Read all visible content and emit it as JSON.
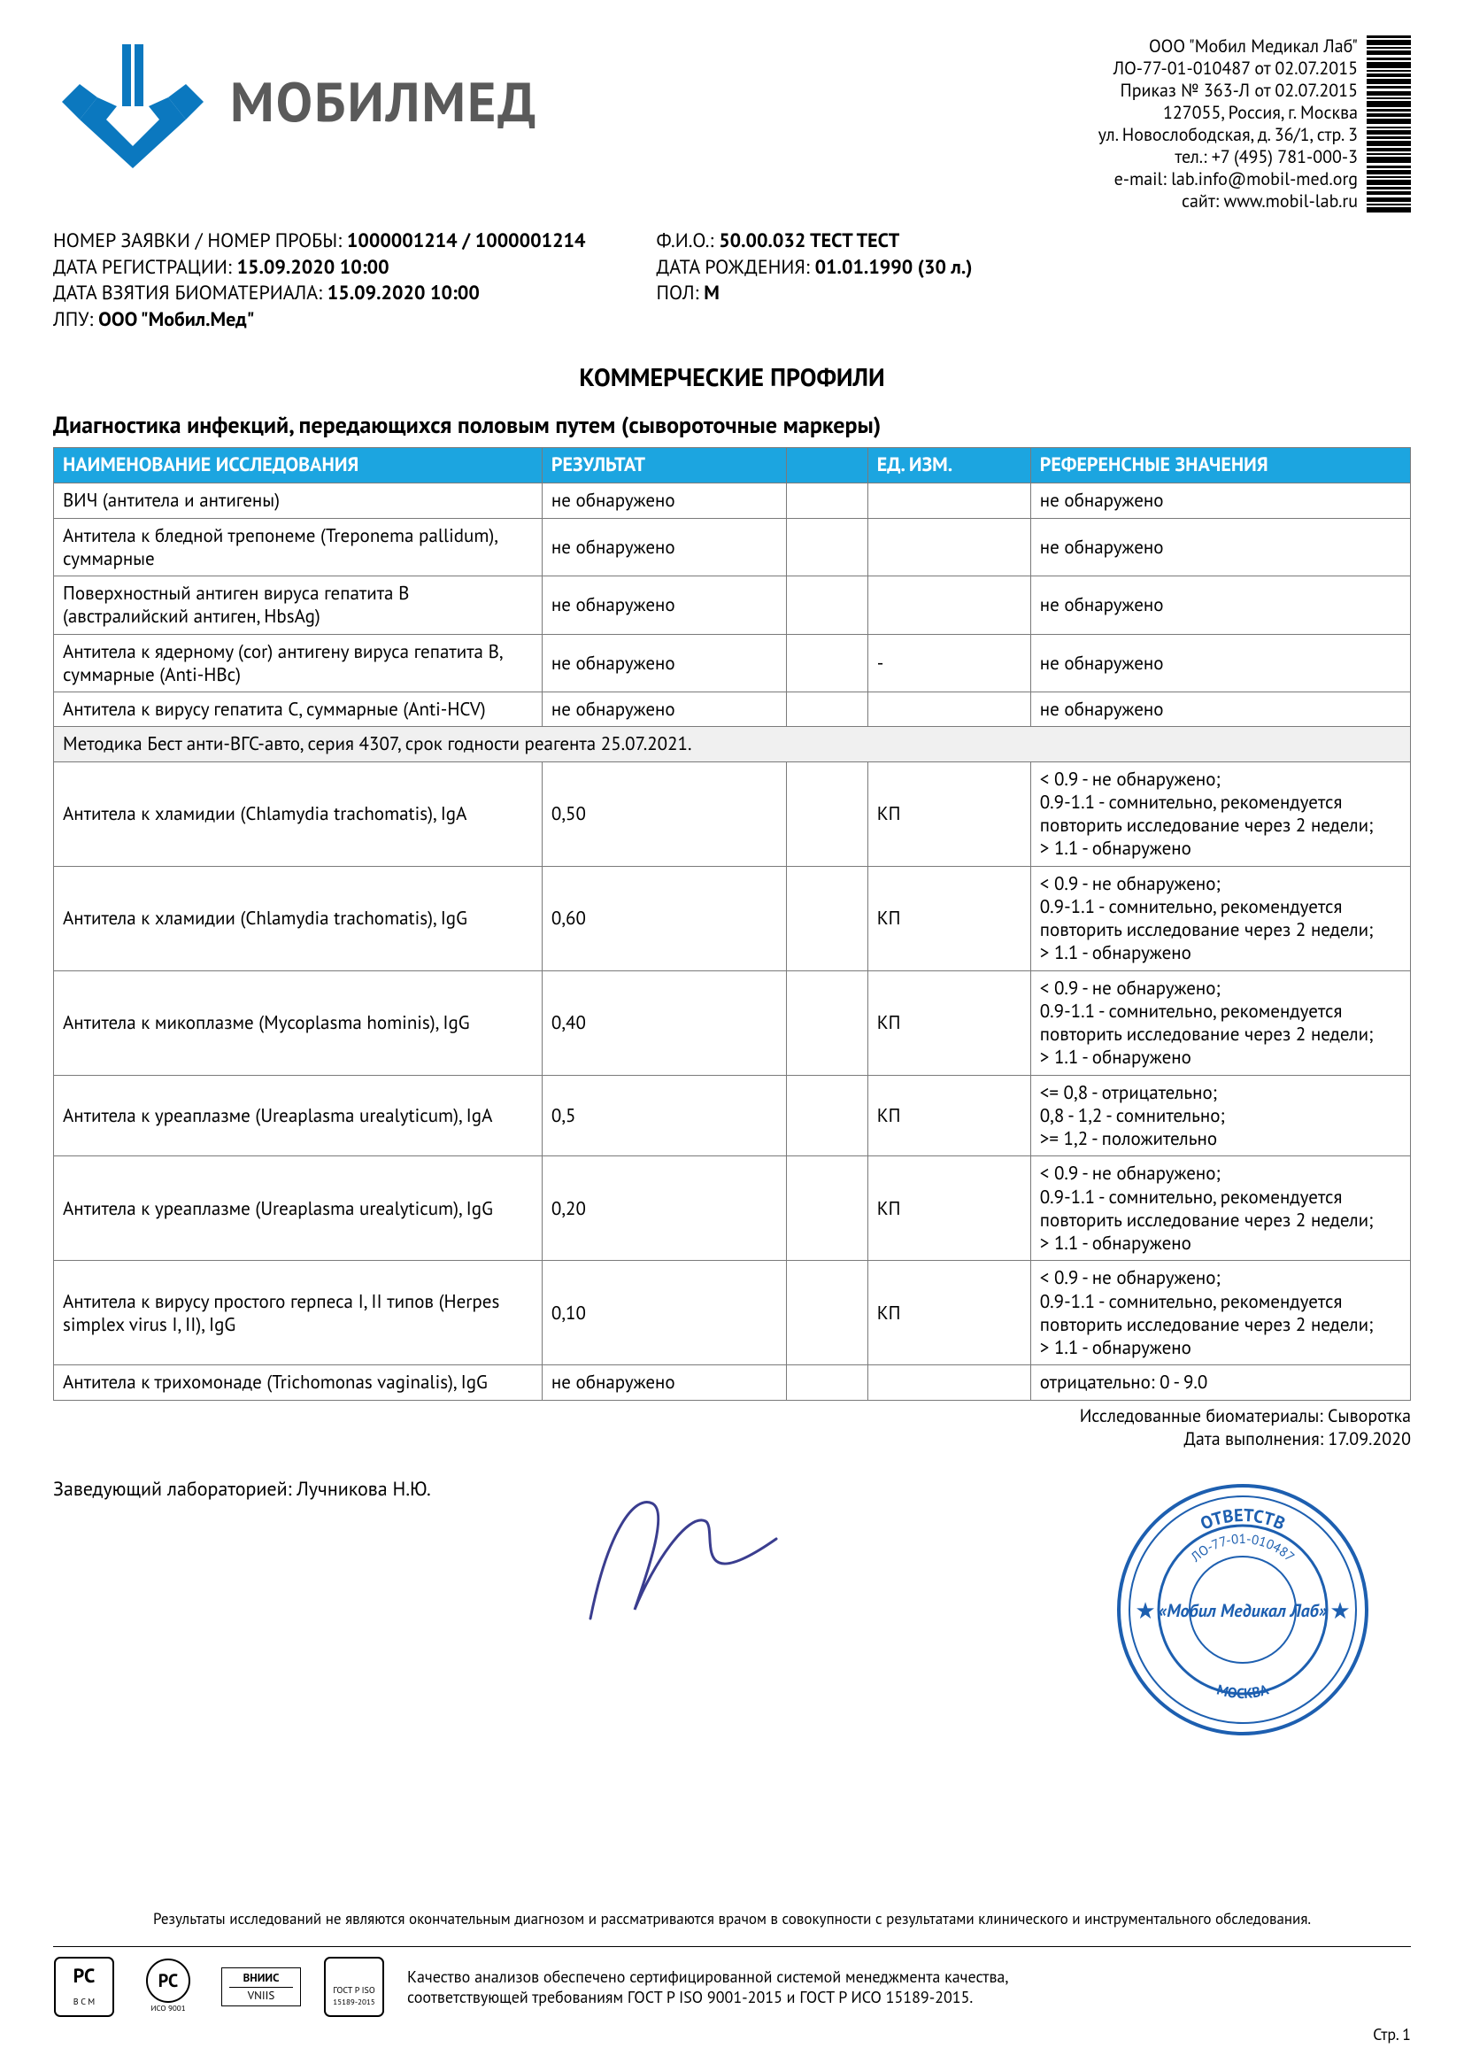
{
  "company": {
    "name": "ООО \"Мобил Медикал Лаб\"",
    "license": "ЛО-77-01-010487 от 02.07.2015",
    "order": "Приказ № 363-Л от 02.07.2015",
    "zip_city": "127055, Россия, г. Москва",
    "address": "ул. Новослободская, д. 36/1, стр. 3",
    "phone": "тел.: +7 (495) 781-000-3",
    "email": "e-mail: lab.info@mobil-med.org",
    "site": "сайт: www.mobil-lab.ru"
  },
  "logo_text": "МОБИЛМЕД",
  "meta_left": {
    "l1_label": "НОМЕР ЗАЯВКИ / НОМЕР ПРОБЫ: ",
    "l1_value": "1000001214 / 1000001214",
    "l2_label": "ДАТА РЕГИСТРАЦИИ: ",
    "l2_value": "15.09.2020 10:00",
    "l3_label": "ДАТА ВЗЯТИЯ БИОМАТЕРИАЛА: ",
    "l3_value": "15.09.2020 10:00",
    "l4_label": "ЛПУ: ",
    "l4_value": "ООО \"Мобил.Мед\""
  },
  "meta_right": {
    "l1_label": "Ф.И.О.: ",
    "l1_value": "50.00.032 ТЕСТ ТЕСТ",
    "l2_label": "ДАТА РОЖДЕНИЯ: ",
    "l2_value": "01.01.1990 (30 л.)",
    "l3_label": "ПОЛ: ",
    "l3_value": "М"
  },
  "section_title": "КОММЕРЧЕСКИЕ ПРОФИЛИ",
  "sub_title": "Диагностика инфекций, передающихся половым путем (сывороточные маркеры)",
  "columns": {
    "name": "НАИМЕНОВАНИЕ ИССЛЕДОВАНИЯ",
    "result": "РЕЗУЛЬТАТ",
    "flag": "",
    "unit": "ЕД. ИЗМ.",
    "ref": "РЕФЕРЕНСНЫЕ ЗНАЧЕНИЯ"
  },
  "rows": [
    {
      "name": "ВИЧ (антитела и антигены)",
      "result": "не обнаружено",
      "flag": "",
      "unit": "",
      "ref": "не обнаружено"
    },
    {
      "name": "Антитела к бледной трепонеме (Treponema pallidum), суммарные",
      "result": "не обнаружено",
      "flag": "",
      "unit": "",
      "ref": "не обнаружено"
    },
    {
      "name": "Поверхностный антиген вируса гепатита В (австралийский антиген, HbsAg)",
      "result": "не обнаружено",
      "flag": "",
      "unit": "",
      "ref": "не обнаружено"
    },
    {
      "name": "Антитела к ядерному (cor) антигену вируса гепатита В, суммарные (Anti-HBc)",
      "result": "не обнаружено",
      "flag": "",
      "unit": "-",
      "ref": "не обнаружено"
    },
    {
      "name": "Антитела к вирусу гепатита C, суммарные (Anti-HCV)",
      "result": "не обнаружено",
      "flag": "",
      "unit": "",
      "ref": "не обнаружено"
    },
    {
      "note": "Методика Бест анти-ВГС-авто, серия 4307, срок годности реагента 25.07.2021."
    },
    {
      "name": "Антитела к хламидии (Chlamydia trachomatis), IgA",
      "result": "0,50",
      "flag": "",
      "unit": "КП",
      "ref": "< 0.9 - не обнаружено;\n0.9-1.1 - сомнительно, рекомендуется повторить исследование через 2 недели;\n> 1.1 - обнаружено"
    },
    {
      "name": "Антитела к хламидии (Chlamydia trachomatis), IgG",
      "result": "0,60",
      "flag": "",
      "unit": "КП",
      "ref": "< 0.9 - не обнаружено;\n0.9-1.1 - сомнительно, рекомендуется повторить исследование через 2 недели;\n> 1.1 - обнаружено"
    },
    {
      "name": "Антитела к микоплазме (Mycoplasma hominis), IgG",
      "result": "0,40",
      "flag": "",
      "unit": "КП",
      "ref": "< 0.9 - не обнаружено;\n0.9-1.1 - сомнительно, рекомендуется повторить исследование через 2 недели;\n> 1.1 - обнаружено"
    },
    {
      "name": "Антитела к уреаплазме (Ureaplasma urealyticum), IgA",
      "result": "0,5",
      "flag": "",
      "unit": "КП",
      "ref": "<= 0,8 - отрицательно;\n0,8 - 1,2 - сомнительно;\n>= 1,2 - положительно"
    },
    {
      "name": "Антитела к уреаплазме (Ureaplasma urealyticum), IgG",
      "result": "0,20",
      "flag": "",
      "unit": "КП",
      "ref": "< 0.9 - не обнаружено;\n0.9-1.1 - сомнительно, рекомендуется повторить исследование через 2 недели;\n> 1.1 - обнаружено"
    },
    {
      "name": "Антитела к вирусу простого герпеса I, II типов (Herpes simplex virus I, II), IgG",
      "result": "0,10",
      "flag": "",
      "unit": "КП",
      "ref": "< 0.9 - не обнаружено;\n0.9-1.1 - сомнительно, рекомендуется повторить исследование через 2 недели;\n> 1.1 - обнаружено"
    },
    {
      "name": "Антитела к трихомонаде (Trichomonas vaginalis), IgG",
      "result": "не обнаружено",
      "flag": "",
      "unit": "",
      "ref": "отрицательно: 0 - 9.0"
    }
  ],
  "below": {
    "biomaterials": "Исследованные биоматериалы: Сыворотка",
    "exec_date": "Дата выполнения: 17.09.2020"
  },
  "lab_head": "Заведующий лабораторией: Лучникова Н.Ю.",
  "stamp": {
    "outer_top": "ОТВЕТСТВ",
    "license": "ЛО-77-01-010487",
    "center": "«Мобил Медикал Лаб»",
    "bottom": "МОСКВА"
  },
  "disclaimer": "Результаты исследований не являются окончательным диагнозом и рассматриваются врачом в совокупности с результатами клинического и инструментального обследования.",
  "quality_l1": "Качество анализов обеспечено сертифицированной системой менеджмента качества,",
  "quality_l2": "соответствующей требованиям ГОСТ Р ISO 9001-2015 и ГОСТ Р ИСО 15189-2015.",
  "cert3_top": "ВНИИС",
  "cert3_bottom": "VNIIS",
  "page_num": "Стр. 1",
  "colors": {
    "header_bg": "#1ca5e0",
    "logo_blue": "#0b78bf",
    "stamp_blue": "#1d5fb0",
    "sig_blue": "#3a3d8f"
  }
}
